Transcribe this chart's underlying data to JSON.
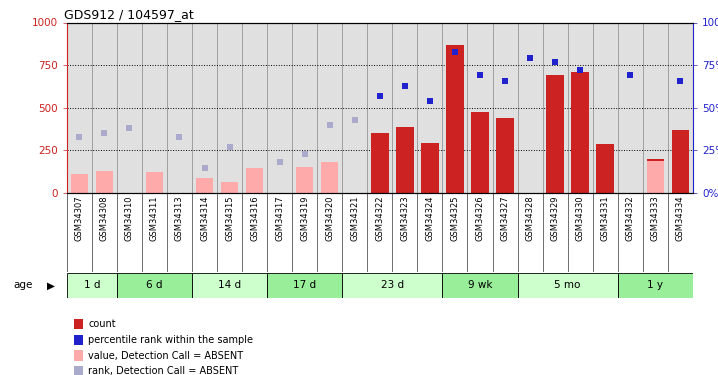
{
  "title": "GDS912 / 104597_at",
  "samples": [
    "GSM34307",
    "GSM34308",
    "GSM34310",
    "GSM34311",
    "GSM34313",
    "GSM34314",
    "GSM34315",
    "GSM34316",
    "GSM34317",
    "GSM34319",
    "GSM34320",
    "GSM34321",
    "GSM34322",
    "GSM34323",
    "GSM34324",
    "GSM34325",
    "GSM34326",
    "GSM34327",
    "GSM34328",
    "GSM34329",
    "GSM34330",
    "GSM34331",
    "GSM34332",
    "GSM34333",
    "GSM34334"
  ],
  "age_groups": [
    {
      "label": "1 d",
      "start": 0,
      "end": 2
    },
    {
      "label": "6 d",
      "start": 2,
      "end": 5
    },
    {
      "label": "14 d",
      "start": 5,
      "end": 8
    },
    {
      "label": "17 d",
      "start": 8,
      "end": 11
    },
    {
      "label": "23 d",
      "start": 11,
      "end": 15
    },
    {
      "label": "9 wk",
      "start": 15,
      "end": 18
    },
    {
      "label": "5 mo",
      "start": 18,
      "end": 22
    },
    {
      "label": "1 y",
      "start": 22,
      "end": 25
    }
  ],
  "count_present": [
    null,
    null,
    null,
    null,
    null,
    null,
    null,
    null,
    null,
    null,
    null,
    null,
    350,
    390,
    295,
    870,
    475,
    440,
    null,
    695,
    710,
    285,
    null,
    200,
    370
  ],
  "rank_present": [
    null,
    null,
    null,
    null,
    null,
    null,
    null,
    null,
    null,
    null,
    null,
    null,
    57,
    63,
    54,
    83,
    69,
    66,
    79,
    77,
    72,
    null,
    69,
    null,
    66
  ],
  "count_absent": [
    115,
    130,
    null,
    125,
    null,
    90,
    65,
    150,
    null,
    155,
    180,
    null,
    null,
    null,
    null,
    null,
    null,
    null,
    null,
    null,
    null,
    null,
    null,
    190,
    null
  ],
  "rank_absent": [
    33,
    35,
    38,
    null,
    33,
    15,
    27,
    null,
    18,
    23,
    40,
    43,
    null,
    null,
    null,
    null,
    null,
    null,
    null,
    null,
    null,
    null,
    null,
    null,
    null
  ],
  "ylim": [
    0,
    1000
  ],
  "y2lim": [
    0,
    100
  ],
  "yticks": [
    0,
    250,
    500,
    750,
    1000
  ],
  "y2ticks": [
    0,
    25,
    50,
    75,
    100
  ],
  "bar_color": "#cc2222",
  "bar_absent_color": "#ffaaaa",
  "rank_color": "#2222cc",
  "rank_absent_color": "#aaaacc",
  "plot_bg_color": "#e0e0e0",
  "label_bg_color": "#c8c8c8",
  "age_colors": [
    "#ccffcc",
    "#99ee99"
  ],
  "bar_width": 0.7,
  "marker_size": 5
}
